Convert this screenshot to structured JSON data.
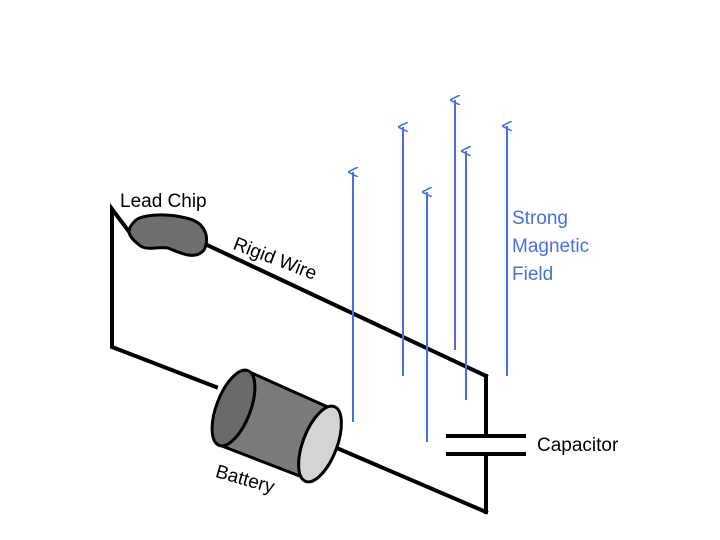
{
  "labels": {
    "lead_chip": "Lead Chip",
    "rigid_wire": "Rigid Wire",
    "battery": "Battery",
    "capacitor": "Capacitor",
    "field_line1": "Strong",
    "field_line2": "Magnetic",
    "field_line3": "Field"
  },
  "colors": {
    "wire": "#000000",
    "field": "#4a6fe0",
    "battery_body": "#7a7a7a",
    "battery_cap": "#d4d4d4",
    "chip": "#6e6e6e"
  },
  "icons": {
    "field_arrow": "arrow-up-icon"
  }
}
